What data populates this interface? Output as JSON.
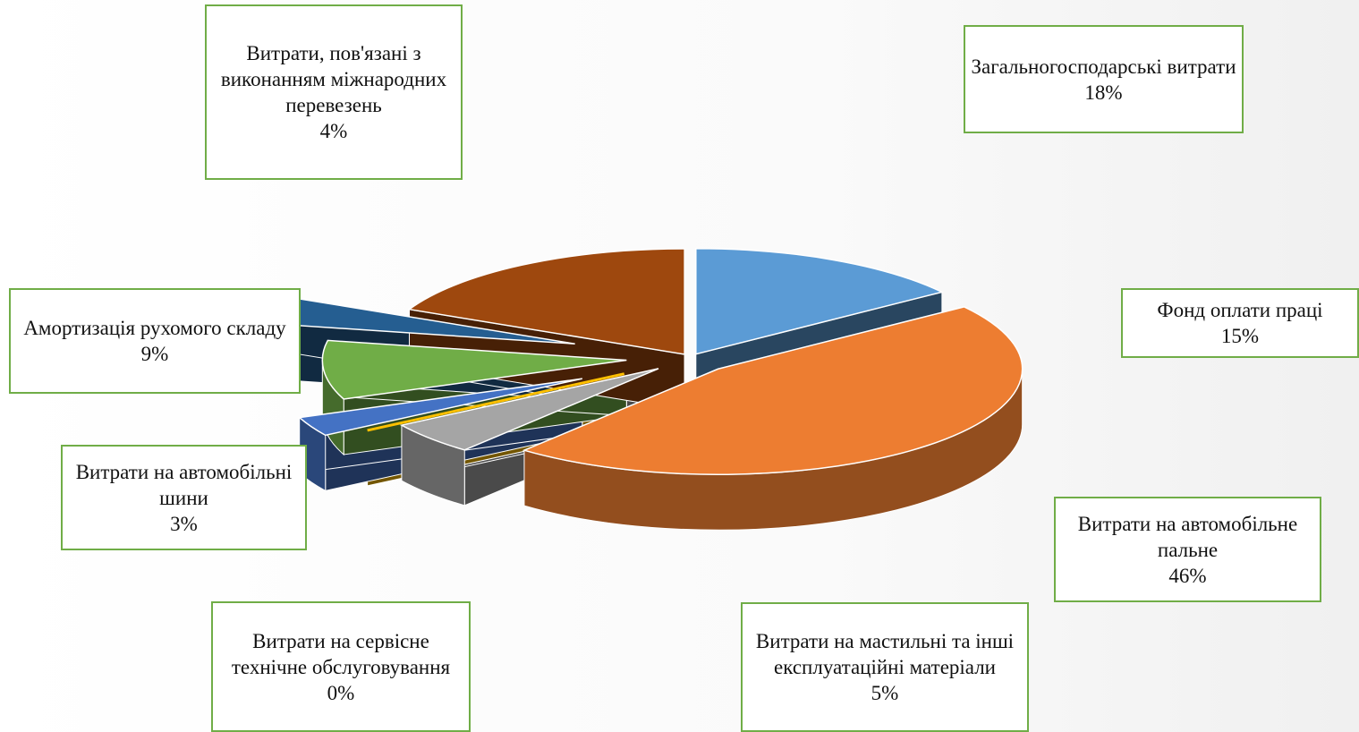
{
  "chart_data": {
    "type": "pie",
    "categories": [
      "Фонд оплати праці",
      "Витрати на автомобільне пальне",
      "Витрати на мастильні та інші експлуатаційні матеріали",
      "Витрати на сервісне технічне обслуговування",
      "Витрати на автомобільні шини",
      "Амортизація рухомого складу",
      "Витрати, пов'язані з виконанням міжнародних перевезень",
      "Загальногосподарські витрати"
    ],
    "values": [
      15,
      46,
      5,
      0,
      3,
      9,
      4,
      18
    ],
    "value_labels": [
      "15%",
      "46%",
      "5%",
      "0%",
      "3%",
      "9%",
      "4%",
      "18%"
    ],
    "colors": [
      "#5b9bd5",
      "#ed7d31",
      "#a5a5a5",
      "#ffc000",
      "#4472c4",
      "#70ad47",
      "#255e91",
      "#9e480e"
    ]
  }
}
